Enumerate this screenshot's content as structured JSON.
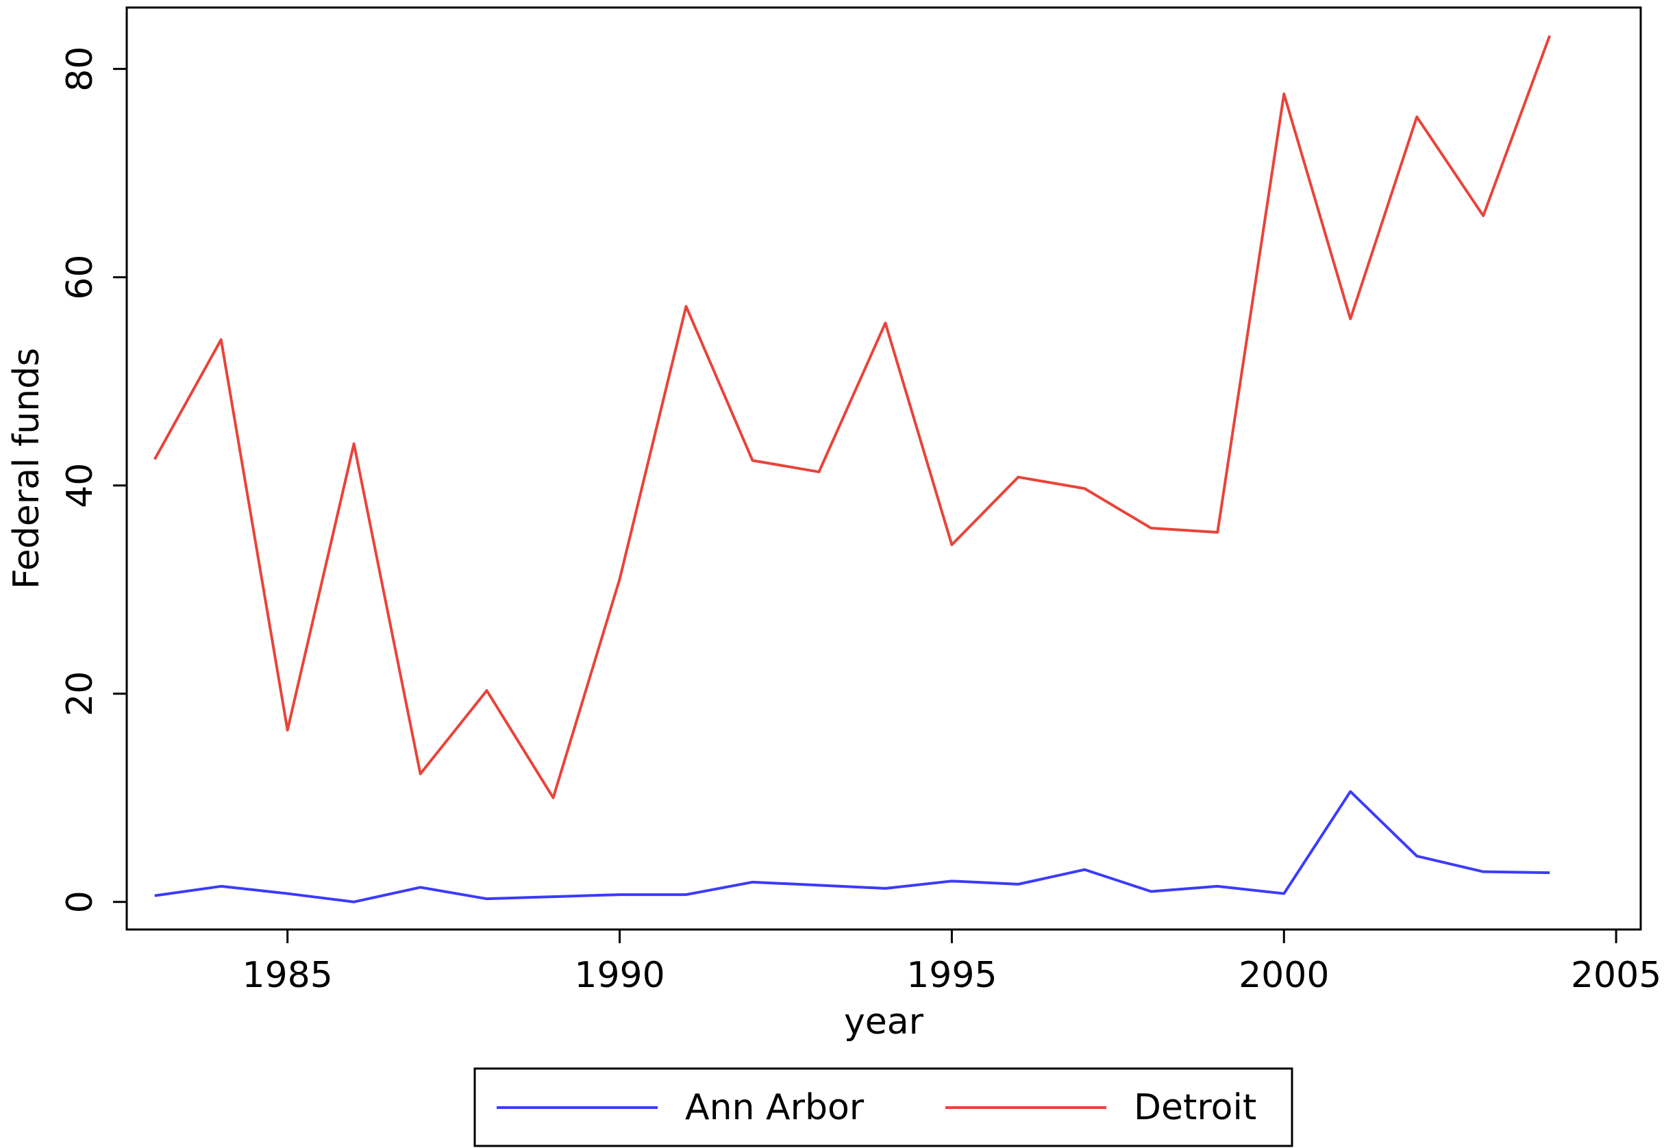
{
  "chart_data": {
    "type": "line",
    "x_label": "year",
    "y_label": "Federal funds",
    "x": [
      1983,
      1984,
      1985,
      1986,
      1987,
      1988,
      1989,
      1990,
      1991,
      1992,
      1993,
      1994,
      1995,
      1996,
      1997,
      1998,
      1999,
      2000,
      2001,
      2002,
      2003,
      2004
    ],
    "series": [
      {
        "name": "Ann Arbor",
        "color": "#3b3bff",
        "values": [
          0.6,
          1.5,
          0.8,
          0.0,
          1.4,
          0.3,
          0.5,
          0.7,
          0.7,
          1.9,
          1.6,
          1.3,
          2.0,
          1.7,
          3.1,
          1.0,
          1.5,
          0.8,
          10.6,
          4.4,
          2.9,
          2.8
        ]
      },
      {
        "name": "Detroit",
        "color": "#e8443a",
        "values": [
          42.5,
          54,
          16.5,
          44,
          12.3,
          20.3,
          10,
          31,
          57.2,
          42.4,
          41.3,
          55.6,
          34.3,
          40.8,
          39.7,
          35.9,
          35.5,
          77.6,
          56,
          75.4,
          65.9,
          83.2
        ]
      }
    ],
    "xlim": [
      1982.58,
      2005.37
    ],
    "xticks": [
      1985,
      1990,
      1995,
      2000,
      2005
    ],
    "ylim": [
      -2.65,
      85.9
    ],
    "yticks": [
      0,
      20,
      40,
      60,
      80
    ],
    "grid": false,
    "legend": "bottom"
  }
}
